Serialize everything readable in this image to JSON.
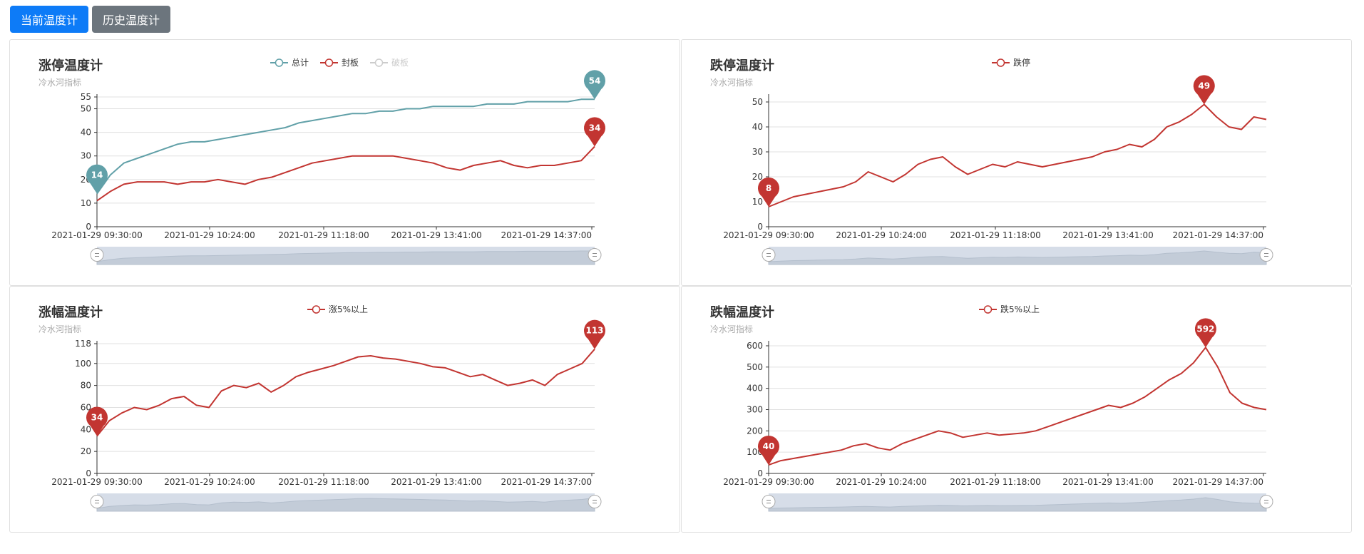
{
  "toolbar": {
    "current_label": "当前温度计",
    "history_label": "历史温度计",
    "current_color": "#0d7bf7",
    "history_color": "#6c757d"
  },
  "charts": [
    {
      "id": "limit-up",
      "title": "涨停温度计",
      "subtitle": "冷水河指标",
      "legend": [
        {
          "name": "总计",
          "color": "#61a0a8",
          "active": true
        },
        {
          "name": "封板",
          "color": "#c23531",
          "active": true
        },
        {
          "name": "破板",
          "color": "#cccccc",
          "active": false
        }
      ]
    },
    {
      "id": "limit-down",
      "title": "跌停温度计",
      "subtitle": "冷水河指标",
      "legend": [
        {
          "name": "跌停",
          "color": "#c23531",
          "active": true
        }
      ]
    },
    {
      "id": "rise",
      "title": "涨幅温度计",
      "subtitle": "冷水河指标",
      "legend": [
        {
          "name": "涨5%以上",
          "color": "#c23531",
          "active": true
        }
      ]
    },
    {
      "id": "fall",
      "title": "跌幅温度计",
      "subtitle": "冷水河指标",
      "legend": [
        {
          "name": "跌5%以上",
          "color": "#c23531",
          "active": true
        }
      ]
    }
  ],
  "chart_data": [
    {
      "type": "line",
      "title": "涨停温度计",
      "subtitle": "冷水河指标",
      "xlabels": [
        "2021-01-29 09:30:00",
        "2021-01-29 10:24:00",
        "2021-01-29 11:18:00",
        "2021-01-29 13:41:00",
        "2021-01-29 14:37:00"
      ],
      "ylim": [
        0,
        55
      ],
      "yticks": [
        0,
        10,
        20,
        30,
        40,
        50,
        55
      ],
      "grid": true,
      "legend_position": "top-center",
      "series": [
        {
          "name": "总计",
          "color": "#61a0a8",
          "values": [
            14,
            22,
            27,
            29,
            31,
            33,
            35,
            36,
            36,
            37,
            38,
            39,
            40,
            41,
            42,
            44,
            45,
            46,
            47,
            48,
            48,
            49,
            49,
            50,
            50,
            51,
            51,
            51,
            51,
            52,
            52,
            52,
            53,
            53,
            53,
            53,
            54,
            54
          ],
          "markers": [
            {
              "label": "14",
              "index": 0,
              "value": 14
            },
            {
              "label": "54",
              "index": 37,
              "value": 54
            }
          ]
        },
        {
          "name": "封板",
          "color": "#c23531",
          "values": [
            11,
            15,
            18,
            19,
            19,
            19,
            18,
            19,
            19,
            20,
            19,
            18,
            20,
            21,
            23,
            25,
            27,
            28,
            29,
            30,
            30,
            30,
            30,
            29,
            28,
            27,
            25,
            24,
            26,
            27,
            28,
            26,
            25,
            26,
            26,
            27,
            28,
            34
          ],
          "markers": [
            {
              "label": "34",
              "index": 37,
              "value": 34
            }
          ]
        },
        {
          "name": "破板",
          "color": "#cccccc",
          "values": []
        }
      ]
    },
    {
      "type": "line",
      "title": "跌停温度计",
      "subtitle": "冷水河指标",
      "xlabels": [
        "2021-01-29 09:30:00",
        "2021-01-29 10:24:00",
        "2021-01-29 11:18:00",
        "2021-01-29 13:41:00",
        "2021-01-29 14:37:00"
      ],
      "ylim": [
        0,
        52
      ],
      "yticks": [
        0,
        10,
        20,
        30,
        40,
        50
      ],
      "grid": true,
      "legend_position": "top-center",
      "series": [
        {
          "name": "跌停",
          "color": "#c23531",
          "values": [
            8,
            10,
            12,
            13,
            14,
            15,
            16,
            18,
            22,
            20,
            18,
            21,
            25,
            27,
            28,
            24,
            21,
            23,
            25,
            24,
            26,
            25,
            24,
            25,
            26,
            27,
            28,
            30,
            31,
            33,
            32,
            35,
            40,
            42,
            45,
            49,
            44,
            40,
            39,
            44,
            43
          ],
          "markers": [
            {
              "label": "8",
              "index": 0,
              "value": 8
            },
            {
              "label": "49",
              "index": 35,
              "value": 49
            }
          ]
        }
      ]
    },
    {
      "type": "line",
      "title": "涨幅温度计",
      "subtitle": "冷水河指标",
      "xlabels": [
        "2021-01-29 09:30:00",
        "2021-01-29 10:24:00",
        "2021-01-29 11:18:00",
        "2021-01-29 13:41:00",
        "2021-01-29 14:37:00"
      ],
      "ylim": [
        0,
        118
      ],
      "yticks": [
        0,
        20,
        40,
        60,
        80,
        100,
        118
      ],
      "grid": true,
      "legend_position": "top-center",
      "series": [
        {
          "name": "涨5%以上",
          "color": "#c23531",
          "values": [
            34,
            48,
            55,
            60,
            58,
            62,
            68,
            70,
            62,
            60,
            75,
            80,
            78,
            82,
            74,
            80,
            88,
            92,
            95,
            98,
            102,
            106,
            107,
            105,
            104,
            102,
            100,
            97,
            96,
            92,
            88,
            90,
            85,
            80,
            82,
            85,
            80,
            90,
            95,
            100,
            113
          ],
          "markers": [
            {
              "label": "34",
              "index": 0,
              "value": 34
            },
            {
              "label": "113",
              "index": 40,
              "value": 113
            }
          ]
        }
      ]
    },
    {
      "type": "line",
      "title": "跌幅温度计",
      "subtitle": "冷水河指标",
      "xlabels": [
        "2021-01-29 09:30:00",
        "2021-01-29 10:24:00",
        "2021-01-29 11:18:00",
        "2021-01-29 13:41:00",
        "2021-01-29 14:37:00"
      ],
      "ylim": [
        0,
        610
      ],
      "yticks": [
        0,
        100,
        200,
        300,
        400,
        500,
        600
      ],
      "grid": true,
      "legend_position": "top-center",
      "series": [
        {
          "name": "跌5%以上",
          "color": "#c23531",
          "values": [
            40,
            60,
            70,
            80,
            90,
            100,
            110,
            130,
            140,
            120,
            110,
            140,
            160,
            180,
            200,
            190,
            170,
            180,
            190,
            180,
            185,
            190,
            200,
            220,
            240,
            260,
            280,
            300,
            320,
            310,
            330,
            360,
            400,
            440,
            470,
            520,
            592,
            500,
            380,
            330,
            310,
            300
          ],
          "markers": [
            {
              "label": "40",
              "index": 0,
              "value": 40
            },
            {
              "label": "592",
              "index": 36,
              "value": 592
            }
          ]
        }
      ]
    }
  ]
}
